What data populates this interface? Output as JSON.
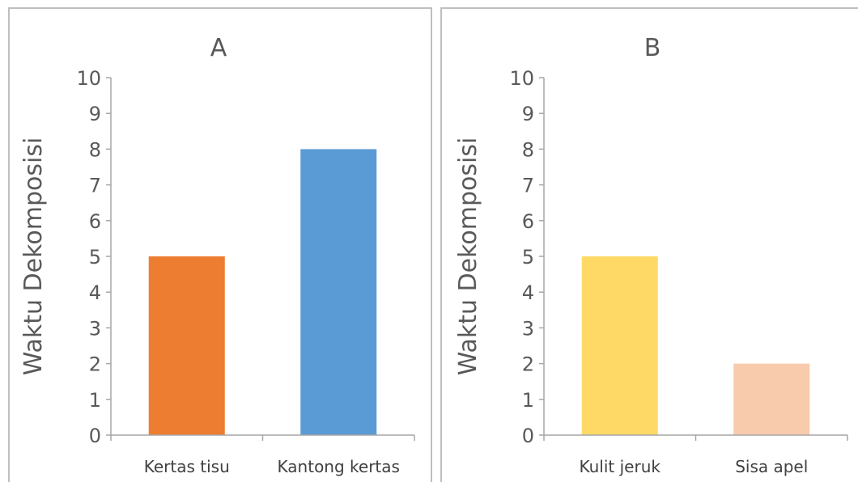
{
  "chart_data": [
    {
      "type": "bar",
      "title": "A",
      "ylabel": "Waktu Dekomposisi",
      "xlabel": "",
      "ylim": [
        0,
        10
      ],
      "yticks": [
        0,
        1,
        2,
        3,
        4,
        5,
        6,
        7,
        8,
        9,
        10
      ],
      "categories": [
        "Kertas tisu",
        "Kantong kertas"
      ],
      "values": [
        5,
        8
      ],
      "colors": [
        "#ED7D31",
        "#5B9BD5"
      ],
      "grid": false,
      "legend": "none"
    },
    {
      "type": "bar",
      "title": "B",
      "ylabel": "Waktu Dekomposisi",
      "xlabel": "",
      "ylim": [
        0,
        10
      ],
      "yticks": [
        0,
        1,
        2,
        3,
        4,
        5,
        6,
        7,
        8,
        9,
        10
      ],
      "categories": [
        "Kulit jeruk",
        "Sisa apel"
      ],
      "values": [
        5,
        2
      ],
      "colors": [
        "#FFD966",
        "#F8CBAD"
      ],
      "grid": false,
      "legend": "none"
    }
  ]
}
